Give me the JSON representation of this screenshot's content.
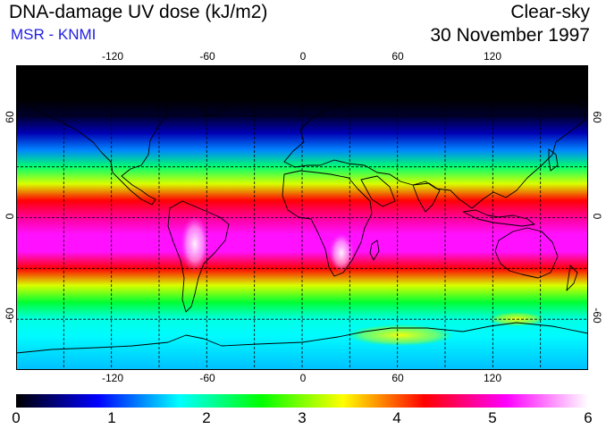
{
  "header": {
    "title": "DNA-damage UV dose (kJ/m2)",
    "source": "MSR - KNMI",
    "condition": "Clear-sky",
    "date": "30 November 1997"
  },
  "map": {
    "projection": "equirectangular",
    "lon_ticks": [
      "-120",
      "-60",
      "0",
      "60",
      "120"
    ],
    "lat_ticks_left": [
      "60",
      "0",
      "-60"
    ],
    "lat_ticks_right": [
      "60",
      "0",
      "-60"
    ],
    "lon_range": [
      -180,
      180
    ],
    "lat_range": [
      -90,
      90
    ],
    "grid_step_deg": 30,
    "latitude_profile": [
      {
        "lat": 90,
        "value": 0.0
      },
      {
        "lat": 70,
        "value": 0.0
      },
      {
        "lat": 60,
        "value": 0.15
      },
      {
        "lat": 50,
        "value": 0.6
      },
      {
        "lat": 40,
        "value": 1.3
      },
      {
        "lat": 30,
        "value": 2.2
      },
      {
        "lat": 20,
        "value": 3.3
      },
      {
        "lat": 10,
        "value": 4.3
      },
      {
        "lat": 0,
        "value": 4.8
      },
      {
        "lat": -10,
        "value": 5.2
      },
      {
        "lat": -20,
        "value": 5.2
      },
      {
        "lat": -30,
        "value": 4.3
      },
      {
        "lat": -40,
        "value": 3.3
      },
      {
        "lat": -50,
        "value": 2.4
      },
      {
        "lat": -60,
        "value": 1.8
      },
      {
        "lat": -70,
        "value": 1.7
      },
      {
        "lat": -80,
        "value": 1.6
      },
      {
        "lat": -90,
        "value": 1.5
      }
    ]
  },
  "colorbar": {
    "min": 0,
    "max": 6,
    "labels": [
      "0",
      "1",
      "2",
      "3",
      "4",
      "5",
      "6"
    ],
    "stops": [
      "#000000",
      "#0000ff",
      "#00ffff",
      "#00ff00",
      "#ffff00",
      "#ff0000",
      "#ff00ff",
      "#ffffff"
    ]
  }
}
